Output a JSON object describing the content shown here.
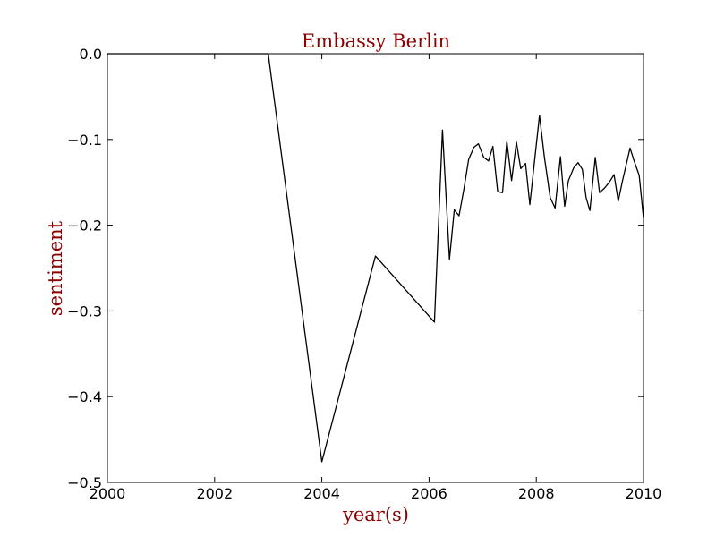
{
  "chart_data": {
    "type": "line",
    "title": "Embassy Berlin",
    "xlabel": "year(s)",
    "ylabel": "sentiment",
    "xlim": [
      2000,
      2010
    ],
    "ylim": [
      -0.5,
      0.0
    ],
    "xticks": [
      2000,
      2002,
      2004,
      2006,
      2008,
      2010
    ],
    "xtick_labels": [
      "2000",
      "2002",
      "2004",
      "2006",
      "2008",
      "2010"
    ],
    "yticks": [
      0.0,
      -0.1,
      -0.2,
      -0.3,
      -0.4,
      -0.5
    ],
    "ytick_labels": [
      "0.0",
      "−0.1",
      "−0.2",
      "−0.3",
      "−0.4",
      "−0.5"
    ],
    "grid": false,
    "text_color": "#8b0000",
    "line_color": "#000000",
    "series": [
      {
        "x": [
          2000.0,
          2003.0,
          2004.0,
          2005.0,
          2006.1,
          2006.25,
          2006.38,
          2006.47,
          2006.56,
          2006.65,
          2006.74,
          2006.84,
          2006.92,
          2007.02,
          2007.11,
          2007.19,
          2007.28,
          2007.37,
          2007.45,
          2007.54,
          2007.63,
          2007.71,
          2007.8,
          2007.88,
          2007.98,
          2008.06,
          2008.15,
          2008.26,
          2008.35,
          2008.45,
          2008.53,
          2008.6,
          2008.7,
          2008.78,
          2008.86,
          2008.93,
          2009.0,
          2009.1,
          2009.18,
          2009.27,
          2009.36,
          2009.45,
          2009.53,
          2009.61,
          2009.75,
          2009.82,
          2009.92,
          2010.0
        ],
        "y": [
          0.0,
          0.0,
          -0.476,
          -0.236,
          -0.313,
          -0.089,
          -0.24,
          -0.182,
          -0.189,
          -0.158,
          -0.123,
          -0.109,
          -0.105,
          -0.121,
          -0.125,
          -0.108,
          -0.161,
          -0.162,
          -0.102,
          -0.148,
          -0.103,
          -0.134,
          -0.128,
          -0.176,
          -0.118,
          -0.072,
          -0.12,
          -0.168,
          -0.18,
          -0.12,
          -0.178,
          -0.148,
          -0.133,
          -0.127,
          -0.135,
          -0.168,
          -0.183,
          -0.121,
          -0.162,
          -0.157,
          -0.15,
          -0.141,
          -0.172,
          -0.148,
          -0.11,
          -0.124,
          -0.142,
          -0.192
        ]
      }
    ]
  }
}
